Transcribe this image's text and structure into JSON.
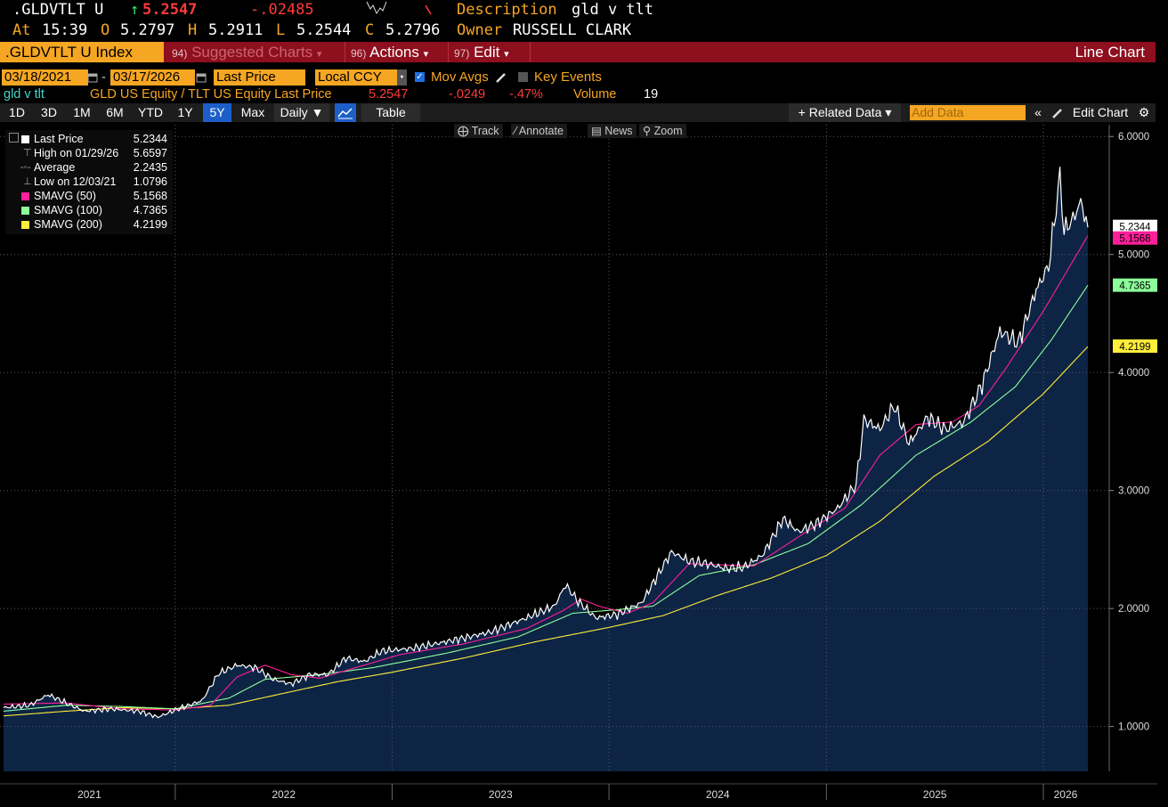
{
  "header": {
    "ticker": ".GLDVTLT U",
    "last_arrow": "↑",
    "last": "5.2547",
    "change": "-.02485",
    "description_label": "Description",
    "description": "gld v tlt",
    "at_label": "At",
    "time": "15:39",
    "open_label": "O",
    "open": "5.2797",
    "high_label": "H",
    "high": "5.2911",
    "low_label": "L",
    "low": "5.2544",
    "close_label": "C",
    "close": "5.2796",
    "owner_label": "Owner",
    "owner": "RUSSELL CLARK"
  },
  "command_bar": {
    "security": ".GLDVTLT U Index",
    "suggested_num": "94)",
    "suggested_label": "Suggested Charts",
    "actions_num": "96)",
    "actions_label": "Actions",
    "edit_num": "97)",
    "edit_label": "Edit",
    "chart_type": "Line Chart"
  },
  "settings": {
    "start_date": "03/18/2021",
    "end_date": "03/17/2026",
    "field": "Last Price",
    "currency": "Local CCY",
    "mov_avgs": "Mov Avgs",
    "key_events": "Key Events"
  },
  "series_line": {
    "name": "gld v tlt",
    "desc": "GLD US Equity / TLT US Equity Last Price",
    "last": "5.2547",
    "change": "-.0249",
    "pct": "-.47%",
    "volume_label": "Volume",
    "volume": "19"
  },
  "toolbar": {
    "ranges": [
      "1D",
      "3D",
      "1M",
      "6M",
      "YTD",
      "1Y",
      "5Y",
      "Max"
    ],
    "active_range": "5Y",
    "freq": "Daily ▼",
    "table": "Table",
    "related": "+ Related Data ▾",
    "add_data_placeholder": "Add Data",
    "edit_chart": "Edit Chart"
  },
  "chart_tools": [
    "Track",
    "Annotate",
    "News",
    "Zoom"
  ],
  "legend": [
    {
      "name": "Last Price",
      "value": "5.2344",
      "color": "#ffffff",
      "marker": "square"
    },
    {
      "name": "High on 01/29/26",
      "value": "5.6597",
      "color": "#aaaaaa",
      "marker": "high"
    },
    {
      "name": "Average",
      "value": "2.2435",
      "color": "#aaaaaa",
      "marker": "avg"
    },
    {
      "name": "Low on 12/03/21",
      "value": "1.0796",
      "color": "#aaaaaa",
      "marker": "low"
    },
    {
      "name": "SMAVG (50)",
      "value": "5.1568",
      "color": "#ff1f9a",
      "marker": "square"
    },
    {
      "name": "SMAVG (100)",
      "value": "4.7365",
      "color": "#8dff9a",
      "marker": "square"
    },
    {
      "name": "SMAVG (200)",
      "value": "4.2199",
      "color": "#ffee3a",
      "marker": "square"
    }
  ],
  "chart_data": {
    "type": "line",
    "title": "",
    "xlabel": "",
    "ylabel": "",
    "ylim": [
      0.62,
      6.1
    ],
    "xlim": [
      "2021-03-18",
      "2026-03-17"
    ],
    "y_ticks": [
      "1.0000",
      "2.0000",
      "3.0000",
      "4.0000",
      "5.0000",
      "6.0000"
    ],
    "x_tick_labels": [
      "2021",
      "2022",
      "2023",
      "2024",
      "2025",
      "2026"
    ],
    "grid": true,
    "legend_position": "top-left",
    "series": [
      {
        "name": "Last Price",
        "color": "#ffffff",
        "fill": "#0d2445",
        "points": [
          [
            "2021-03-18",
            1.16
          ],
          [
            "2021-05-01",
            1.18
          ],
          [
            "2021-06-01",
            1.27
          ],
          [
            "2021-07-01",
            1.2
          ],
          [
            "2021-08-01",
            1.13
          ],
          [
            "2021-09-15",
            1.15
          ],
          [
            "2021-11-01",
            1.13
          ],
          [
            "2021-12-03",
            1.08
          ],
          [
            "2022-01-01",
            1.14
          ],
          [
            "2022-02-15",
            1.22
          ],
          [
            "2022-03-15",
            1.45
          ],
          [
            "2022-04-15",
            1.52
          ],
          [
            "2022-05-15",
            1.5
          ],
          [
            "2022-06-15",
            1.4
          ],
          [
            "2022-07-15",
            1.36
          ],
          [
            "2022-08-15",
            1.44
          ],
          [
            "2022-09-15",
            1.44
          ],
          [
            "2022-10-15",
            1.58
          ],
          [
            "2022-11-15",
            1.55
          ],
          [
            "2022-12-15",
            1.64
          ],
          [
            "2023-02-01",
            1.66
          ],
          [
            "2023-03-15",
            1.7
          ],
          [
            "2023-05-01",
            1.75
          ],
          [
            "2023-06-15",
            1.8
          ],
          [
            "2023-08-15",
            1.92
          ],
          [
            "2023-10-01",
            2.02
          ],
          [
            "2023-10-20",
            2.2
          ],
          [
            "2023-11-10",
            2.06
          ],
          [
            "2023-12-10",
            1.92
          ],
          [
            "2024-01-15",
            1.95
          ],
          [
            "2024-02-25",
            2.05
          ],
          [
            "2024-03-25",
            2.3
          ],
          [
            "2024-04-15",
            2.48
          ],
          [
            "2024-05-15",
            2.4
          ],
          [
            "2024-06-15",
            2.38
          ],
          [
            "2024-07-15",
            2.34
          ],
          [
            "2024-08-15",
            2.35
          ],
          [
            "2024-09-15",
            2.45
          ],
          [
            "2024-10-20",
            2.76
          ],
          [
            "2024-11-15",
            2.65
          ],
          [
            "2024-12-15",
            2.72
          ],
          [
            "2025-01-20",
            2.85
          ],
          [
            "2025-02-20",
            3.05
          ],
          [
            "2025-03-05",
            3.6
          ],
          [
            "2025-04-01",
            3.52
          ],
          [
            "2025-04-25",
            3.72
          ],
          [
            "2025-05-20",
            3.4
          ],
          [
            "2025-06-20",
            3.62
          ],
          [
            "2025-07-20",
            3.52
          ],
          [
            "2025-08-20",
            3.58
          ],
          [
            "2025-09-20",
            3.9
          ],
          [
            "2025-10-20",
            4.35
          ],
          [
            "2025-11-20",
            4.25
          ],
          [
            "2025-12-20",
            4.7
          ],
          [
            "2026-01-10",
            4.9
          ],
          [
            "2026-01-29",
            5.66
          ],
          [
            "2026-02-05",
            5.2
          ],
          [
            "2026-02-20",
            5.3
          ],
          [
            "2026-03-05",
            5.45
          ],
          [
            "2026-03-17",
            5.23
          ]
        ]
      },
      {
        "name": "SMAVG (50)",
        "color": "#ff1f9a",
        "points": [
          [
            "2021-03-18",
            1.19
          ],
          [
            "2021-07-01",
            1.2
          ],
          [
            "2021-10-01",
            1.15
          ],
          [
            "2022-01-01",
            1.14
          ],
          [
            "2022-03-01",
            1.18
          ],
          [
            "2022-04-15",
            1.42
          ],
          [
            "2022-06-01",
            1.52
          ],
          [
            "2022-07-15",
            1.44
          ],
          [
            "2022-09-01",
            1.41
          ],
          [
            "2022-11-15",
            1.52
          ],
          [
            "2023-01-15",
            1.61
          ],
          [
            "2023-05-01",
            1.7
          ],
          [
            "2023-08-15",
            1.83
          ],
          [
            "2023-10-15",
            1.98
          ],
          [
            "2023-11-15",
            2.08
          ],
          [
            "2023-12-15",
            2.02
          ],
          [
            "2024-02-01",
            1.96
          ],
          [
            "2024-03-15",
            2.05
          ],
          [
            "2024-05-15",
            2.38
          ],
          [
            "2024-09-01",
            2.36
          ],
          [
            "2024-12-01",
            2.66
          ],
          [
            "2025-02-01",
            2.85
          ],
          [
            "2025-04-01",
            3.3
          ],
          [
            "2025-06-01",
            3.56
          ],
          [
            "2025-08-01",
            3.58
          ],
          [
            "2025-09-15",
            3.72
          ],
          [
            "2025-11-01",
            4.05
          ],
          [
            "2026-01-01",
            4.52
          ],
          [
            "2026-03-17",
            5.16
          ]
        ]
      },
      {
        "name": "SMAVG (100)",
        "color": "#8dff9a",
        "points": [
          [
            "2021-03-18",
            1.13
          ],
          [
            "2021-07-01",
            1.18
          ],
          [
            "2021-10-01",
            1.17
          ],
          [
            "2022-01-01",
            1.15
          ],
          [
            "2022-04-01",
            1.24
          ],
          [
            "2022-06-01",
            1.4
          ],
          [
            "2022-09-01",
            1.44
          ],
          [
            "2022-12-01",
            1.5
          ],
          [
            "2023-04-01",
            1.62
          ],
          [
            "2023-08-01",
            1.76
          ],
          [
            "2023-11-01",
            1.96
          ],
          [
            "2024-01-15",
            1.99
          ],
          [
            "2024-03-15",
            2.02
          ],
          [
            "2024-06-01",
            2.28
          ],
          [
            "2024-09-01",
            2.37
          ],
          [
            "2024-12-01",
            2.55
          ],
          [
            "2025-03-01",
            2.88
          ],
          [
            "2025-06-01",
            3.3
          ],
          [
            "2025-09-01",
            3.58
          ],
          [
            "2025-11-15",
            3.88
          ],
          [
            "2026-01-15",
            4.28
          ],
          [
            "2026-03-17",
            4.74
          ]
        ]
      },
      {
        "name": "SMAVG (200)",
        "color": "#ffee3a",
        "points": [
          [
            "2021-03-18",
            1.09
          ],
          [
            "2021-07-01",
            1.13
          ],
          [
            "2021-10-01",
            1.16
          ],
          [
            "2022-01-01",
            1.15
          ],
          [
            "2022-04-01",
            1.18
          ],
          [
            "2022-07-01",
            1.28
          ],
          [
            "2022-10-01",
            1.38
          ],
          [
            "2023-01-01",
            1.46
          ],
          [
            "2023-05-01",
            1.58
          ],
          [
            "2023-09-01",
            1.72
          ],
          [
            "2024-01-01",
            1.84
          ],
          [
            "2024-04-01",
            1.94
          ],
          [
            "2024-07-01",
            2.11
          ],
          [
            "2024-10-01",
            2.26
          ],
          [
            "2025-01-01",
            2.45
          ],
          [
            "2025-04-01",
            2.74
          ],
          [
            "2025-07-01",
            3.12
          ],
          [
            "2025-10-01",
            3.42
          ],
          [
            "2026-01-01",
            3.82
          ],
          [
            "2026-03-17",
            4.22
          ]
        ]
      }
    ],
    "value_tags": [
      {
        "name": "Last Price",
        "value": "5.2344",
        "bg": "#ffffff",
        "fg": "#000000"
      },
      {
        "name": "SMAVG (50)",
        "value": "5.1568",
        "bg": "#ff1f9a",
        "fg": "#000000"
      },
      {
        "name": "SMAVG (100)",
        "value": "4.7365",
        "bg": "#8dff9a",
        "fg": "#000000"
      },
      {
        "name": "SMAVG (200)",
        "value": "4.2199",
        "bg": "#ffee3a",
        "fg": "#000000"
      }
    ]
  }
}
